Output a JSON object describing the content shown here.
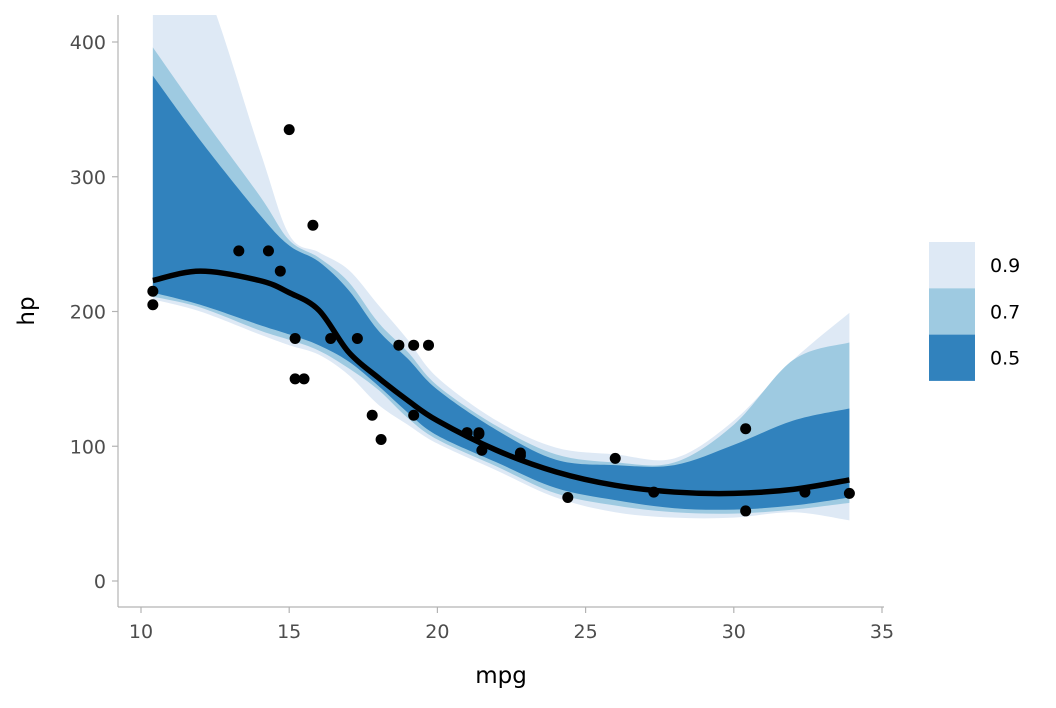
{
  "chart_data": {
    "type": "scatter",
    "title": "",
    "xlabel": "mpg",
    "ylabel": "hp",
    "xlim": [
      9.2,
      35
    ],
    "ylim": [
      -19.3,
      420
    ],
    "xticks": [
      10,
      15,
      20,
      25,
      30,
      35
    ],
    "yticks": [
      0,
      100,
      200,
      300,
      400
    ],
    "grid": false,
    "legend": {
      "placement": "right",
      "entries": [
        "0.9",
        "0.7",
        "0.5"
      ],
      "colors": [
        "#dee9f5",
        "#9ecae1",
        "#3182bd"
      ]
    },
    "points": [
      [
        21.0,
        110
      ],
      [
        21.0,
        110
      ],
      [
        22.8,
        93
      ],
      [
        21.4,
        110
      ],
      [
        18.7,
        175
      ],
      [
        18.1,
        105
      ],
      [
        14.3,
        245
      ],
      [
        24.4,
        62
      ],
      [
        22.8,
        95
      ],
      [
        19.2,
        123
      ],
      [
        17.8,
        123
      ],
      [
        16.4,
        180
      ],
      [
        17.3,
        180
      ],
      [
        15.2,
        180
      ],
      [
        10.4,
        205
      ],
      [
        10.4,
        215
      ],
      [
        14.7,
        230
      ],
      [
        32.4,
        66
      ],
      [
        30.4,
        52
      ],
      [
        33.9,
        65
      ],
      [
        21.5,
        97
      ],
      [
        15.5,
        150
      ],
      [
        15.2,
        150
      ],
      [
        13.3,
        245
      ],
      [
        19.2,
        175
      ],
      [
        27.3,
        66
      ],
      [
        26.0,
        91
      ],
      [
        30.4,
        113
      ],
      [
        15.8,
        264
      ],
      [
        19.7,
        175
      ],
      [
        15.0,
        335
      ],
      [
        21.4,
        109
      ]
    ],
    "band_x": [
      10.4,
      12,
      14,
      15,
      16,
      17,
      18,
      19,
      20,
      22,
      24,
      26,
      28,
      30,
      32,
      33.9
    ],
    "median": [
      223,
      230,
      223,
      214,
      201,
      170,
      151,
      134,
      119,
      97,
      81,
      71,
      66,
      65,
      68,
      75
    ],
    "bands": [
      {
        "level": "0.9",
        "color": "#dee9f5",
        "upper": [
          480,
          450,
          320,
          257,
          244,
          231,
          205,
          179,
          151,
          119,
          99,
          94,
          91,
          119,
          164,
          199
        ],
        "lower": [
          209,
          200,
          183,
          175,
          168,
          153,
          131,
          116,
          102,
          82,
          62,
          51,
          47,
          47,
          51,
          45
        ]
      },
      {
        "level": "0.7",
        "color": "#9ecae1",
        "upper": [
          396,
          346,
          286,
          253,
          240,
          222,
          192,
          170,
          145,
          115,
          94,
          88,
          88,
          116,
          164,
          177
        ],
        "lower": [
          211,
          203,
          186,
          179,
          171,
          158,
          142,
          121,
          105,
          85,
          65,
          56,
          51,
          50,
          53,
          58
        ]
      },
      {
        "level": "0.5",
        "color": "#3182bd",
        "upper": [
          375,
          327,
          272,
          249,
          237,
          216,
          186,
          165,
          142,
          112,
          90,
          86,
          86,
          101,
          119,
          128
        ],
        "lower": [
          214,
          205,
          190,
          183,
          175,
          163,
          145,
          125,
          108,
          88,
          69,
          60,
          54,
          53,
          56,
          62
        ]
      }
    ]
  }
}
